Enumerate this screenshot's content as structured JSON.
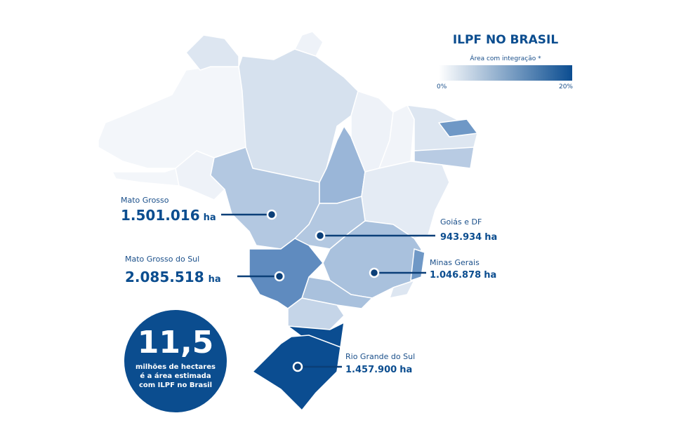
{
  "header": {
    "title": "ILPF NO BRASIL",
    "subtitle": "Área com integração *",
    "scale_min": "0%",
    "scale_max": "20%"
  },
  "callouts": [
    {
      "name": "Mato Grosso",
      "value": "1.501.016",
      "unit": "ha"
    },
    {
      "name": "Mato Grosso do Sul",
      "value": "2.085.518",
      "unit": "ha"
    },
    {
      "name": "Goiás e DF",
      "value": "943.934",
      "unit": "ha"
    },
    {
      "name": "Minas Gerais",
      "value": "1.046.878",
      "unit": "ha"
    },
    {
      "name": "Rio Grande do Sul",
      "value": "1.457.900",
      "unit": "ha"
    }
  ],
  "summary": {
    "value": "11,5",
    "lines": [
      "milhões de hectares",
      "é a área estimada",
      "com ILPF no Brasil"
    ]
  }
}
